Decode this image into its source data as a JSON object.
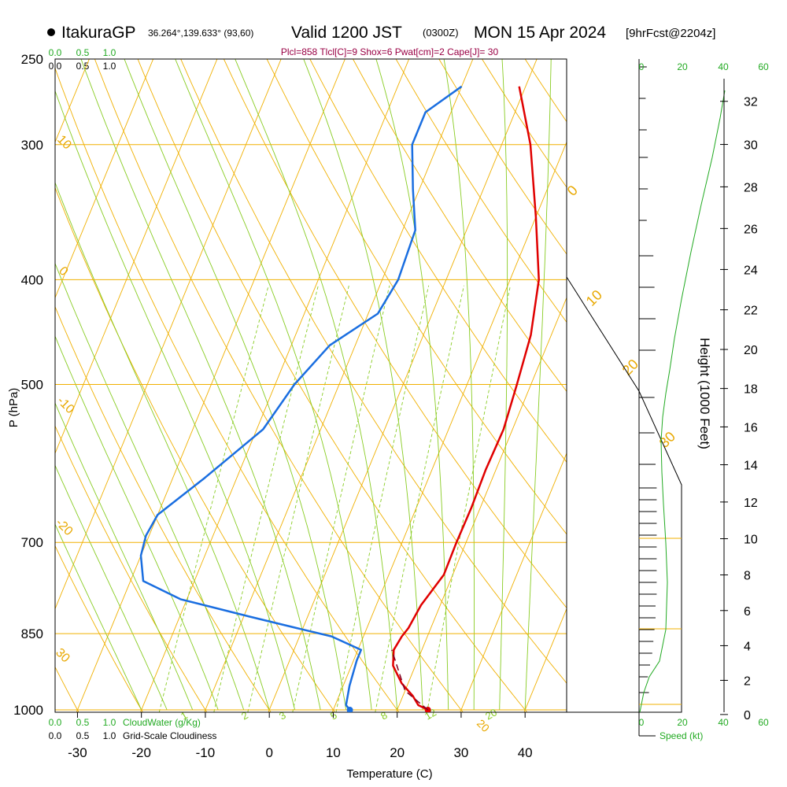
{
  "header": {
    "station": "ItakuraGP",
    "coords": "36.264°,139.633° (93,60)",
    "valid": "Valid 1200 JST",
    "utc": "(0300Z)",
    "date": "MON 15 Apr 2024",
    "fcst": "[9hrFcst@2204z]"
  },
  "indices": "Plcl=858 Tlcl[C]=9 Shox=6 Pwat[cm]=2 Cape[J]= 30",
  "scales": {
    "cw_top": [
      "0.0",
      "0.5",
      "1.0"
    ],
    "cl_top": [
      "0.0",
      "0.5",
      "1.0"
    ],
    "cw_bottom": [
      "0.0",
      "0.5",
      "1.0"
    ],
    "cw_label": "CloudWater (g/Kg)",
    "cl_bottom": [
      "0.0",
      "0.5",
      "1.0"
    ],
    "cl_label": "Grid-Scale Cloudiness",
    "speed_top": [
      "0",
      "20",
      "40",
      "60"
    ],
    "speed_bottom": [
      "0",
      "20",
      "40",
      "60"
    ],
    "speed_label": "Speed (kt)"
  },
  "colors": {
    "temperature": "#e00000",
    "dewpoint": "#1a6ee0",
    "isobar": "#f0b000",
    "isotherm": "#f0b000",
    "dry_adiabat": "#f0b000",
    "moist_adiabat": "#88cc22",
    "mixing_ratio": "#88cc22",
    "cloud": "#22aa22",
    "wind_speed": "#22aa22",
    "parcel": "#800020"
  },
  "chart_data": {
    "type": "line",
    "xlabel": "Temperature (C)",
    "ylabel": "P (hPa)",
    "y2label": "Height (1000 Feet)",
    "x_ticks": [
      "-30",
      "-20",
      "-10",
      "0",
      "10",
      "20",
      "30",
      "40"
    ],
    "x_tick_values": [
      -30,
      -20,
      -10,
      0,
      10,
      20,
      30,
      40
    ],
    "y_ticks": [
      "250",
      "300",
      "400",
      "500",
      "700",
      "850",
      "1000"
    ],
    "y_tick_values": [
      250,
      300,
      400,
      500,
      700,
      850,
      1000
    ],
    "height_ticks": [
      "0",
      "2",
      "4",
      "6",
      "8",
      "10",
      "12",
      "14",
      "16",
      "18",
      "20",
      "22",
      "24",
      "26",
      "28",
      "30",
      "32"
    ],
    "height_tick_values": [
      0,
      2,
      4,
      6,
      8,
      10,
      12,
      14,
      16,
      18,
      20,
      22,
      24,
      26,
      28,
      30,
      32
    ],
    "xlim": [
      -33.5,
      46.5
    ],
    "ylim": [
      1005,
      250
    ],
    "skew_c_per_decade": 69.5,
    "series": [
      {
        "name": "Temperature",
        "points": [
          [
            24.8,
            1000
          ],
          [
            23.0,
            990
          ],
          [
            21.5,
            970
          ],
          [
            19.0,
            945
          ],
          [
            16.5,
            910
          ],
          [
            15.6,
            880
          ],
          [
            16.0,
            855
          ],
          [
            16.5,
            840
          ],
          [
            17.0,
            800
          ],
          [
            18.6,
            750
          ],
          [
            18.5,
            700
          ],
          [
            18.6,
            650
          ],
          [
            18.4,
            600
          ],
          [
            18.6,
            550
          ],
          [
            17.8,
            500
          ],
          [
            16.8,
            450
          ],
          [
            14.5,
            400
          ],
          [
            10.0,
            350
          ],
          [
            4.5,
            300
          ],
          [
            -1.0,
            265
          ]
        ]
      },
      {
        "name": "Dewpoint",
        "points": [
          [
            12.6,
            1000
          ],
          [
            11.7,
            990
          ],
          [
            11.0,
            950
          ],
          [
            10.5,
            900
          ],
          [
            10.5,
            880
          ],
          [
            5.0,
            855
          ],
          [
            -1.0,
            840
          ],
          [
            -9.0,
            820
          ],
          [
            -21.0,
            790
          ],
          [
            -28.0,
            760
          ],
          [
            -30.0,
            720
          ],
          [
            -30.5,
            690
          ],
          [
            -30.0,
            660
          ],
          [
            -25.0,
            610
          ],
          [
            -19.0,
            550
          ],
          [
            -17.0,
            500
          ],
          [
            -14.0,
            460
          ],
          [
            -8.5,
            430
          ],
          [
            -7.5,
            400
          ],
          [
            -8.0,
            360
          ],
          [
            -11.0,
            330
          ],
          [
            -14.0,
            300
          ],
          [
            -14.0,
            280
          ],
          [
            -10.0,
            265
          ]
        ]
      },
      {
        "name": "Parcel",
        "points": [
          [
            24.8,
            1000
          ],
          [
            20.0,
            960
          ],
          [
            15.3,
            880
          ]
        ]
      }
    ],
    "dry_adiabat_labels": [
      "-20",
      "-10",
      "0",
      "10",
      "20",
      "30"
    ],
    "moist_adiabat_labels": [
      "0",
      "10",
      "20",
      "30"
    ],
    "mixing_ratio_labels": [
      "1",
      "2",
      "3",
      "5",
      "8",
      "12",
      "20"
    ],
    "mixing_ratio_values": [
      1,
      2,
      3,
      5,
      8,
      12,
      20
    ]
  }
}
